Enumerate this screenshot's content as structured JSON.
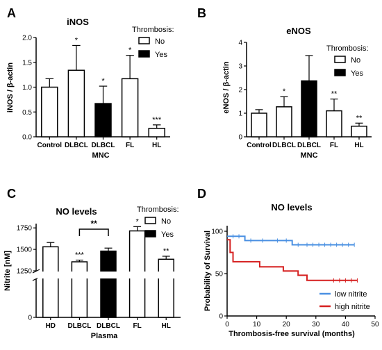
{
  "panel_letters": [
    "A",
    "B",
    "C",
    "D"
  ],
  "legend_title": "Thrombosis:",
  "legend_no": "No",
  "legend_yes": "Yes",
  "colors": {
    "bar_no": "#ffffff",
    "bar_yes": "#000000",
    "low_nitrite": "#4a90e2",
    "high_nitrite": "#d62020",
    "axis": "#000000"
  },
  "chart_data": [
    {
      "id": "A",
      "type": "bar",
      "title": "iNOS",
      "ylabel": "iNOS / β-actin",
      "xlabel": "MNC",
      "categories": [
        "Control",
        "DLBCL",
        "DLBCL",
        "FL",
        "HL"
      ],
      "thrombosis": [
        "No",
        "No",
        "Yes",
        "No",
        "No"
      ],
      "values": [
        1.0,
        1.34,
        0.67,
        1.17,
        0.17
      ],
      "errors": [
        0.17,
        0.5,
        0.35,
        0.47,
        0.07
      ],
      "significance": [
        "",
        "*",
        "*",
        "*",
        "***"
      ],
      "ylim": [
        0,
        2.0
      ],
      "yticks": [
        "0.0",
        "0.5",
        "1.0",
        "1.5",
        "2.0"
      ],
      "legend": [
        "No",
        "Yes"
      ]
    },
    {
      "id": "B",
      "type": "bar",
      "title": "eNOS",
      "ylabel": "eNOS / β-actin",
      "xlabel": "MNC",
      "categories": [
        "Control",
        "DLBCL",
        "DLBCL",
        "FL",
        "HL"
      ],
      "thrombosis": [
        "No",
        "No",
        "Yes",
        "No",
        "No"
      ],
      "values": [
        1.0,
        1.27,
        2.37,
        1.1,
        0.45
      ],
      "errors": [
        0.15,
        0.43,
        1.07,
        0.5,
        0.13
      ],
      "significance": [
        "",
        "*",
        "",
        "**",
        "**"
      ],
      "ylim": [
        0,
        4
      ],
      "yticks": [
        "0",
        "1",
        "2",
        "3",
        "4"
      ],
      "legend": [
        "No",
        "Yes"
      ]
    },
    {
      "id": "C",
      "type": "bar",
      "title": "NO levels",
      "ylabel": "Nitrite [nM]",
      "xlabel": "Plasma",
      "categories": [
        "HD",
        "DLBCL",
        "DLBCL",
        "FL",
        "HL"
      ],
      "thrombosis": [
        "No",
        "No",
        "Yes",
        "No",
        "No"
      ],
      "values": [
        1530,
        1355,
        1480,
        1715,
        1385
      ],
      "errors": [
        50,
        20,
        35,
        50,
        35
      ],
      "significance": [
        "",
        "***",
        "",
        "*",
        "**"
      ],
      "bracket": {
        "from": 1,
        "to": 2,
        "label": "**"
      },
      "axis_break": true,
      "ylim_upper": [
        1250,
        1800
      ],
      "yticks_upper": [
        "1250",
        "1500",
        "1750"
      ],
      "yticks_lower": [
        "0"
      ],
      "legend": [
        "No",
        "Yes"
      ]
    },
    {
      "id": "D",
      "type": "line",
      "subtype": "kaplan-meier",
      "title": "NO levels",
      "ylabel": "Probability of Survival",
      "xlabel": "Thrombosis-free survival (months)",
      "xlim": [
        0,
        50
      ],
      "ylim": [
        0,
        100
      ],
      "xticks": [
        "0",
        "10",
        "20",
        "30",
        "40",
        "50"
      ],
      "yticks": [
        "0",
        "50",
        "100"
      ],
      "legend_position": "bottom-right",
      "series": [
        {
          "name": "low nitrite",
          "steps": [
            [
              0,
              94
            ],
            [
              6,
              94
            ],
            [
              6,
              89
            ],
            [
              22,
              89
            ],
            [
              22,
              84
            ],
            [
              43,
              84
            ]
          ],
          "censored": [
            2,
            4,
            8,
            12,
            17,
            20,
            24,
            27,
            29,
            31,
            33,
            35,
            37,
            39,
            41,
            43
          ]
        },
        {
          "name": "high nitrite",
          "steps": [
            [
              0,
              90
            ],
            [
              1,
              90
            ],
            [
              1,
              75
            ],
            [
              2,
              75
            ],
            [
              2,
              64
            ],
            [
              11,
              64
            ],
            [
              11,
              58
            ],
            [
              19,
              58
            ],
            [
              19,
              53
            ],
            [
              24,
              53
            ],
            [
              24,
              48
            ],
            [
              27,
              48
            ],
            [
              27,
              42
            ],
            [
              44,
              42
            ]
          ],
          "censored": [
            36,
            38,
            40,
            42,
            44
          ]
        }
      ]
    }
  ]
}
